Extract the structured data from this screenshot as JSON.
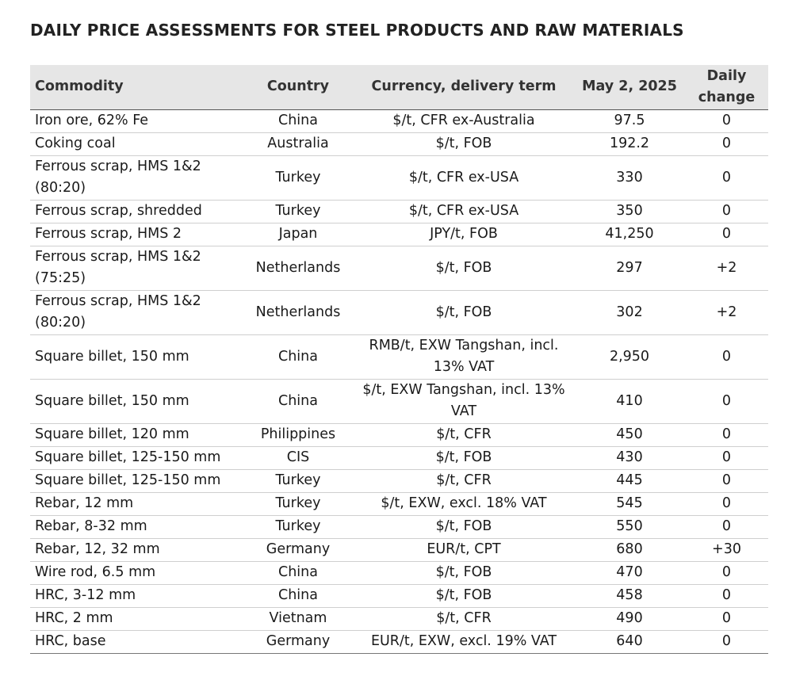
{
  "title": "DAILY PRICE ASSESSMENTS FOR STEEL PRODUCTS AND RAW MATERIALS",
  "columns": [
    "Commodity",
    "Country",
    "Currency, delivery term",
    "May 2, 2025",
    "Daily change"
  ],
  "rows": [
    {
      "commodity": "Iron ore, 62% Fe",
      "country": "China",
      "term": "$/t, CFR ex-Australia",
      "price": "97.5",
      "change": "0"
    },
    {
      "commodity": "Coking coal",
      "country": "Australia",
      "term": "$/t, FOB",
      "price": "192.2",
      "change": "0"
    },
    {
      "commodity": "Ferrous scrap, HMS 1&2 (80:20)",
      "country": "Turkey",
      "term": "$/t, CFR ex-USA",
      "price": "330",
      "change": "0"
    },
    {
      "commodity": "Ferrous scrap, shredded",
      "country": "Turkey",
      "term": "$/t, CFR ex-USA",
      "price": "350",
      "change": "0"
    },
    {
      "commodity": "Ferrous scrap, HMS 2",
      "country": "Japan",
      "term": "JPY/t, FOB",
      "price": "41,250",
      "change": "0"
    },
    {
      "commodity": "Ferrous scrap, HMS 1&2 (75:25)",
      "country": "Netherlands",
      "term": "$/t, FOB",
      "price": "297",
      "change": "+2"
    },
    {
      "commodity": "Ferrous scrap, HMS 1&2 (80:20)",
      "country": "Netherlands",
      "term": "$/t, FOB",
      "price": "302",
      "change": "+2"
    },
    {
      "commodity": "Square billet, 150 mm",
      "country": "China",
      "term": "RMB/t, EXW Tangshan, incl. 13% VAT",
      "price": "2,950",
      "change": "0"
    },
    {
      "commodity": "Square billet, 150 mm",
      "country": "China",
      "term": "$/t, EXW Tangshan, incl. 13% VAT",
      "price": "410",
      "change": "0"
    },
    {
      "commodity": "Square billet, 120 mm",
      "country": "Philippines",
      "term": "$/t, CFR",
      "price": "450",
      "change": "0"
    },
    {
      "commodity": "Square billet, 125-150 mm",
      "country": "CIS",
      "term": "$/t, FOB",
      "price": "430",
      "change": "0"
    },
    {
      "commodity": "Square billet, 125-150 mm",
      "country": "Turkey",
      "term": "$/t, CFR",
      "price": "445",
      "change": "0"
    },
    {
      "commodity": "Rebar, 12 mm",
      "country": "Turkey",
      "term": "$/t, EXW, excl. 18% VAT",
      "price": "545",
      "change": "0"
    },
    {
      "commodity": "Rebar, 8-32 mm",
      "country": "Turkey",
      "term": "$/t, FOB",
      "price": "550",
      "change": "0"
    },
    {
      "commodity": "Rebar, 12, 32 mm",
      "country": "Germany",
      "term": "EUR/t, CPT",
      "price": "680",
      "change": "+30"
    },
    {
      "commodity": "Wire rod, 6.5 mm",
      "country": "China",
      "term": "$/t, FOB",
      "price": "470",
      "change": "0"
    },
    {
      "commodity": "HRC, 3-12 mm",
      "country": "China",
      "term": "$/t, FOB",
      "price": "458",
      "change": "0"
    },
    {
      "commodity": "HRC, 2 mm",
      "country": "Vietnam",
      "term": "$/t, CFR",
      "price": "490",
      "change": "0"
    },
    {
      "commodity": "HRC, base",
      "country": "Germany",
      "term": "EUR/t, EXW, excl. 19% VAT",
      "price": "640",
      "change": "0"
    }
  ]
}
